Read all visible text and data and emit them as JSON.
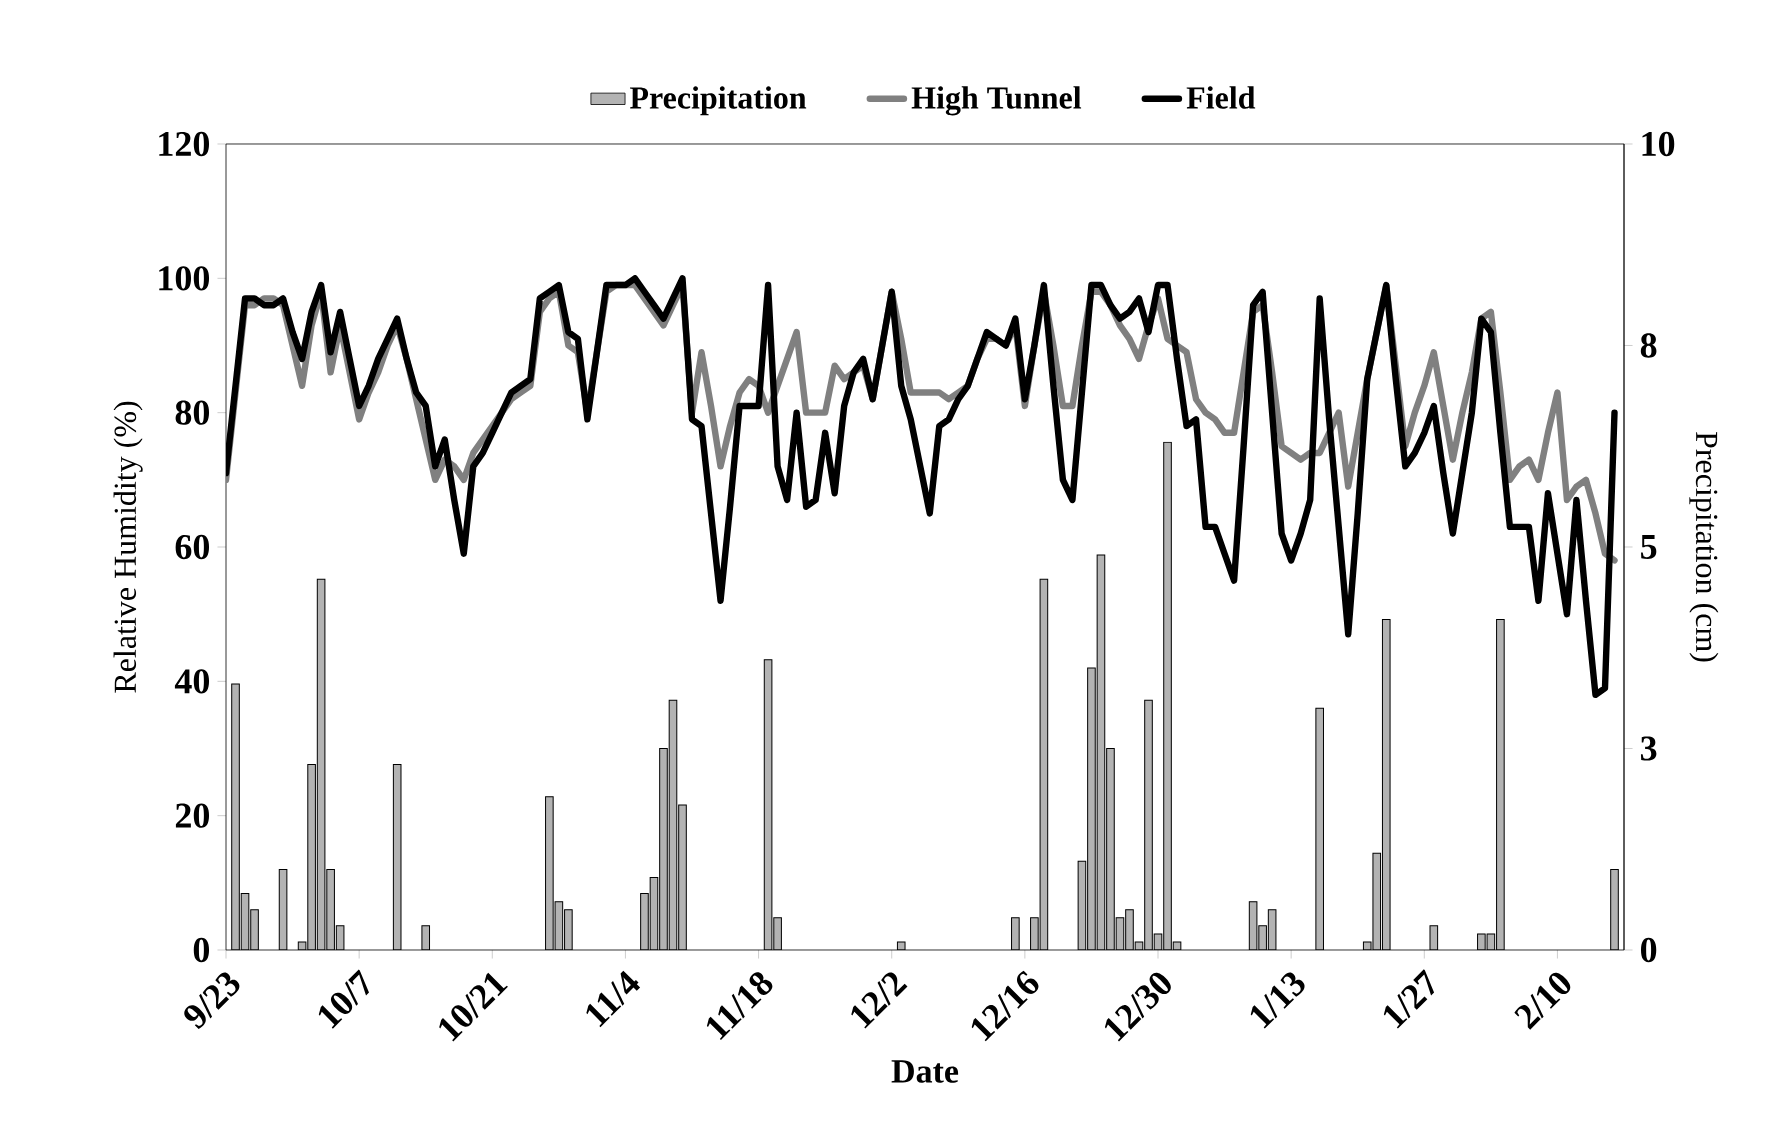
{
  "chart_data": {
    "type": "line",
    "xlabel": "Date",
    "ylabel": "Relative Humidity  (%)",
    "y2label": "Precipitation  (cm)",
    "legend": "top",
    "categories": [
      "9/23",
      null,
      null,
      null,
      null,
      null,
      null,
      null,
      null,
      null,
      null,
      null,
      null,
      null,
      "10/7",
      null,
      null,
      null,
      null,
      null,
      null,
      null,
      null,
      null,
      null,
      null,
      null,
      null,
      "10/21",
      null,
      null,
      null,
      null,
      null,
      null,
      null,
      null,
      null,
      null,
      null,
      null,
      null,
      "11/4",
      null,
      null,
      null,
      null,
      null,
      null,
      null,
      null,
      null,
      null,
      null,
      null,
      null,
      "11/18",
      null,
      null,
      null,
      null,
      null,
      null,
      null,
      null,
      null,
      null,
      null,
      null,
      null,
      "12/2",
      null,
      null,
      null,
      null,
      null,
      null,
      null,
      null,
      null,
      null,
      null,
      null,
      null,
      "12/16",
      null,
      null,
      null,
      null,
      null,
      null,
      null,
      null,
      null,
      null,
      null,
      null,
      null,
      "12/30",
      null,
      null,
      null,
      null,
      null,
      null,
      null,
      null,
      null,
      null,
      null,
      null,
      null,
      "1/13",
      null,
      null,
      null,
      null,
      null,
      null,
      null,
      null,
      null,
      null,
      null,
      null,
      null,
      "1/27",
      null,
      null,
      null,
      null,
      null,
      null,
      null,
      null,
      null,
      null,
      null,
      null,
      null,
      "2/10",
      null,
      null,
      null,
      null,
      null,
      null
    ],
    "ylim": [
      0,
      120
    ],
    "yticks": [
      {
        "value": 0,
        "label": "0"
      },
      {
        "value": 20,
        "label": "20"
      },
      {
        "value": 40,
        "label": "40"
      },
      {
        "value": 60,
        "label": "60"
      },
      {
        "value": 80,
        "label": "80"
      },
      {
        "value": 100,
        "label": "100"
      },
      {
        "value": 120,
        "label": "120"
      }
    ],
    "y2lim": [
      0,
      10
    ],
    "y2ticks": [
      {
        "value": 0,
        "label": "0"
      },
      {
        "value": 2.5,
        "label": "3"
      },
      {
        "value": 5,
        "label": "5"
      },
      {
        "value": 7.5,
        "label": "8"
      },
      {
        "value": 10,
        "label": "10"
      }
    ],
    "series": [
      {
        "name": "Precipitation",
        "type": "bar",
        "axis": "y2",
        "color": "#b3b3b3",
        "values": [
          null,
          3.3,
          0.7,
          0.5,
          null,
          null,
          1.0,
          null,
          0.1,
          2.3,
          4.6,
          1.0,
          0.3,
          null,
          null,
          null,
          null,
          null,
          2.3,
          null,
          null,
          0.3,
          null,
          null,
          null,
          null,
          null,
          null,
          null,
          null,
          null,
          null,
          null,
          null,
          1.9,
          0.6,
          0.5,
          null,
          null,
          null,
          null,
          null,
          null,
          null,
          0.7,
          0.9,
          2.5,
          3.1,
          1.8,
          null,
          null,
          null,
          null,
          null,
          null,
          null,
          null,
          3.6,
          0.4,
          null,
          null,
          null,
          null,
          null,
          null,
          null,
          null,
          null,
          null,
          null,
          null,
          0.1,
          null,
          null,
          null,
          null,
          null,
          null,
          null,
          null,
          null,
          null,
          null,
          0.4,
          null,
          0.4,
          4.6,
          null,
          null,
          null,
          1.1,
          3.5,
          4.9,
          2.5,
          0.4,
          0.5,
          0.1,
          3.1,
          0.2,
          6.3,
          0.1,
          null,
          null,
          null,
          null,
          null,
          null,
          null,
          0.6,
          0.3,
          0.5,
          null,
          null,
          null,
          null,
          3.0,
          null,
          null,
          null,
          null,
          0.1,
          1.2,
          4.1,
          null,
          null,
          null,
          null,
          0.3,
          null,
          null,
          null,
          null,
          0.2,
          0.2,
          4.1,
          null,
          null,
          null,
          null,
          null,
          null,
          null,
          null,
          null,
          null,
          null,
          1.0
        ]
      },
      {
        "name": "High Tunnel",
        "axis": "y",
        "color": "#808080",
        "values": [
          70,
          83,
          96,
          96,
          97,
          97,
          96,
          90,
          84,
          93,
          98,
          86,
          93,
          86,
          79,
          83,
          86,
          90,
          93,
          88,
          82,
          76,
          70,
          73,
          72,
          70,
          74,
          76,
          78,
          80,
          82,
          83,
          84,
          95,
          97,
          98,
          90,
          89,
          80,
          89,
          98,
          99,
          99,
          99,
          97,
          95,
          93,
          96,
          99,
          80,
          89,
          81,
          72,
          78,
          83,
          85,
          84,
          80,
          84,
          88,
          92,
          80,
          80,
          80,
          87,
          85,
          86,
          87,
          82,
          90,
          98,
          91,
          83,
          83,
          83,
          83,
          82,
          83,
          84,
          88,
          91,
          91,
          90,
          93,
          81,
          90,
          98,
          90,
          81,
          81,
          90,
          98,
          98,
          96,
          93,
          91,
          88,
          93,
          97,
          91,
          90,
          89,
          82,
          80,
          79,
          77,
          77,
          86,
          95,
          96,
          86,
          75,
          74,
          73,
          74,
          74,
          77,
          80,
          69,
          77,
          85,
          92,
          99,
          87,
          75,
          80,
          84,
          89,
          81,
          73,
          80,
          86,
          94,
          95,
          83,
          70,
          72,
          73,
          70,
          77,
          83,
          67,
          69,
          70,
          65,
          59,
          58
        ]
      },
      {
        "name": "Field",
        "axis": "y",
        "color": "#000000",
        "values": [
          71,
          84,
          97,
          97,
          96,
          96,
          97,
          92,
          88,
          95,
          99,
          89,
          95,
          88,
          81,
          84,
          88,
          91,
          94,
          88,
          83,
          81,
          72,
          76,
          67,
          59,
          72,
          74,
          77,
          80,
          83,
          84,
          85,
          97,
          98,
          99,
          92,
          91,
          79,
          89,
          99,
          99,
          99,
          100,
          98,
          96,
          94,
          97,
          100,
          79,
          78,
          65,
          52,
          66,
          81,
          81,
          81,
          99,
          72,
          67,
          80,
          66,
          67,
          77,
          68,
          81,
          86,
          88,
          82,
          90,
          98,
          84,
          79,
          72,
          65,
          78,
          79,
          82,
          84,
          88,
          92,
          91,
          90,
          94,
          82,
          90,
          99,
          84,
          70,
          67,
          83,
          99,
          99,
          96,
          94,
          95,
          97,
          92,
          99,
          99,
          88,
          78,
          79,
          63,
          63,
          59,
          55,
          75,
          96,
          98,
          80,
          62,
          58,
          62,
          67,
          97,
          79,
          63,
          47,
          65,
          85,
          92,
          99,
          85,
          72,
          74,
          77,
          81,
          71,
          62,
          71,
          80,
          94,
          92,
          77,
          63,
          63,
          63,
          52,
          68,
          59,
          50,
          67,
          52,
          38,
          39,
          80
        ]
      }
    ]
  }
}
